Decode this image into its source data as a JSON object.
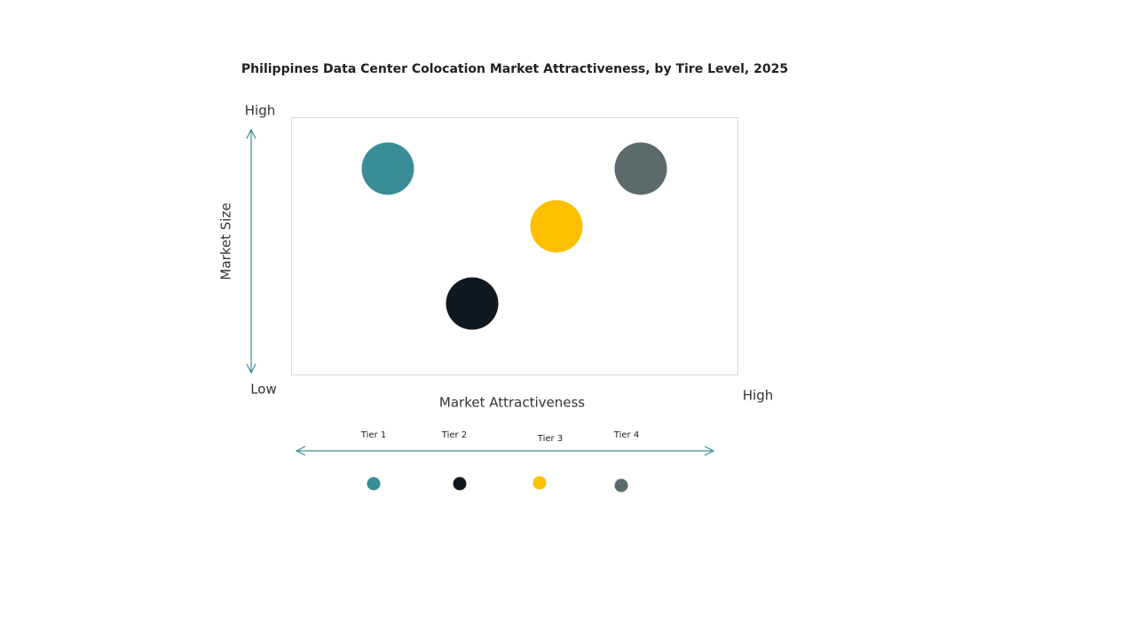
{
  "header": {
    "title": "Philippines Data Center Colocation Market Attractiveness,  by Tire Level, 2025"
  },
  "y_axis": {
    "label": "Market Size",
    "high": "High",
    "low": "Low"
  },
  "x_axis": {
    "label": "Market Attractiveness",
    "high": "High"
  },
  "tiers": [
    {
      "name": "Tier 1",
      "color": "#3a8d96"
    },
    {
      "name": "Tier 2",
      "color": "#111820"
    },
    {
      "name": "Tier 3",
      "color": "#fdc000"
    },
    {
      "name": "Tier 4",
      "color": "#5b6a6a"
    }
  ]
}
